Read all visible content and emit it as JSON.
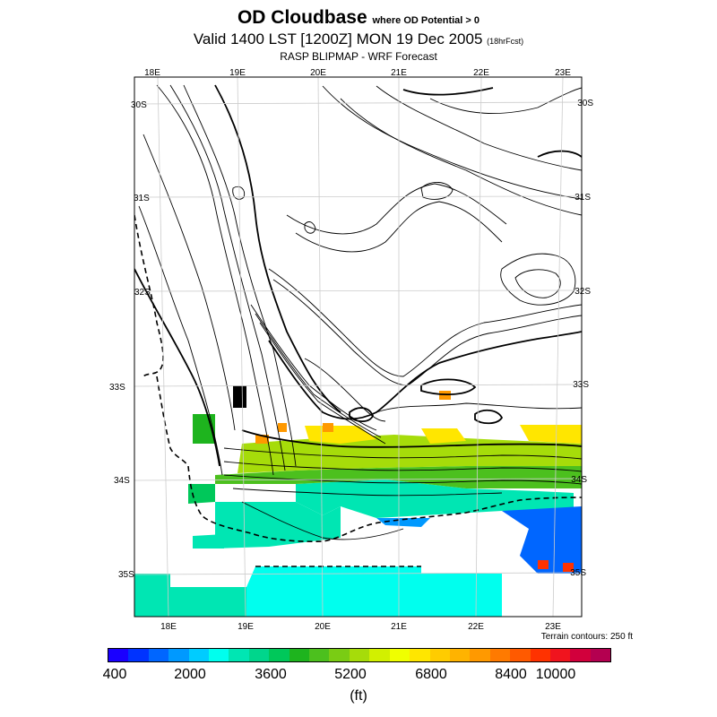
{
  "header": {
    "title": "OD Cloudbase",
    "title_suffix": "where OD Potential > 0",
    "valid_time": "Valid 1400 LST [1200Z] MON 19 Dec 2005",
    "forecast_tag": "(18hrFcst)",
    "subtitle": "RASP BLIPMAP - WRF Forecast"
  },
  "map": {
    "top_lon_labels": [
      "18E",
      "19E",
      "20E",
      "21E",
      "22E",
      "23E"
    ],
    "bottom_lon_labels": [
      "18E",
      "19E",
      "20E",
      "21E",
      "22E",
      "23E"
    ],
    "left_lat_labels": [
      "30S",
      "31S",
      "32S",
      "33S",
      "34S",
      "35S"
    ],
    "right_lat_labels": [
      "30S",
      "31S",
      "32S",
      "33S",
      "34S",
      "35S"
    ],
    "terrain_note": "Terrain contours: 250 ft"
  },
  "legend": {
    "tick_labels": [
      "400",
      "2000",
      "3600",
      "5200",
      "6800",
      "8400",
      "10000"
    ],
    "units": "(ft)",
    "colors": [
      "#1a00ff",
      "#0033ff",
      "#0066ff",
      "#0099ff",
      "#00ccff",
      "#00ffee",
      "#00e6b3",
      "#00d68c",
      "#00c85a",
      "#1eb41e",
      "#4cc01e",
      "#7acc14",
      "#a6dc0a",
      "#d2f000",
      "#f0ff00",
      "#ffe600",
      "#ffcc00",
      "#ffb300",
      "#ff9900",
      "#ff7a00",
      "#ff5a00",
      "#ff3200",
      "#f0141e",
      "#d2003c",
      "#b40050"
    ]
  }
}
